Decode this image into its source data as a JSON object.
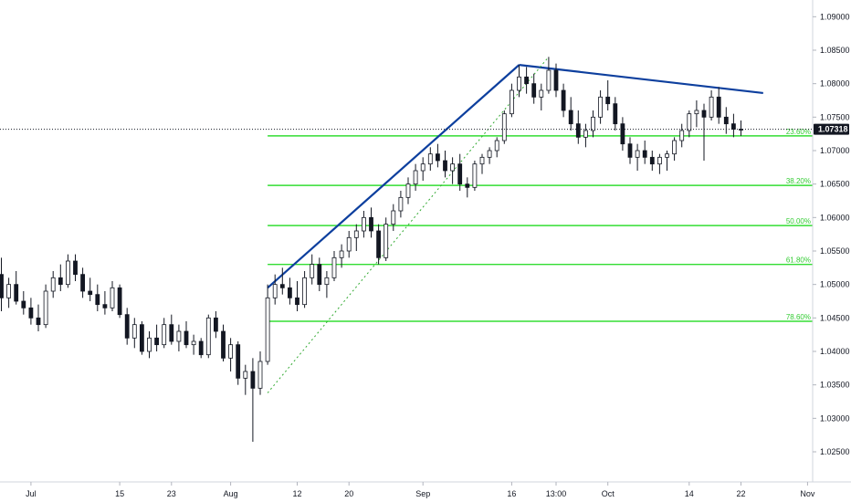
{
  "chart_data": {
    "type": "candlestick",
    "symbol_colors": {
      "candle": "#131722",
      "trendline": "#0d3f9e",
      "fib": "#33dd33",
      "fib_label": "#33cc33",
      "price_line": "#131722",
      "price_tag_bg": "#131722"
    },
    "y_axis": {
      "range": [
        1.0205,
        1.0925
      ],
      "ticks": [
        "1.09000",
        "1.08500",
        "1.08000",
        "1.07500",
        "1.07000",
        "1.06500",
        "1.06000",
        "1.05500",
        "1.05000",
        "1.04500",
        "1.04000",
        "1.03500",
        "1.03000",
        "1.02500"
      ],
      "tick_values": [
        1.09,
        1.085,
        1.08,
        1.075,
        1.07,
        1.065,
        1.06,
        1.055,
        1.05,
        1.045,
        1.04,
        1.035,
        1.03,
        1.025
      ]
    },
    "x_axis": {
      "ticks": [
        "Jul",
        "15",
        "23",
        "Aug",
        "12",
        "20",
        "Sep",
        "16",
        "13:00",
        "Oct",
        "14",
        "22",
        "Nov"
      ],
      "tick_index": [
        4,
        16,
        23,
        31,
        40,
        47,
        57,
        69,
        75,
        82,
        93,
        100,
        109
      ]
    },
    "bar_count": 112,
    "current_price": "1.07318",
    "current_price_value": 1.07318,
    "fib_levels": [
      {
        "label": "23.60%",
        "price": 1.0722,
        "start_index": 36
      },
      {
        "label": "38.20%",
        "price": 1.0648,
        "start_index": 36
      },
      {
        "label": "50.00%",
        "price": 1.0588,
        "start_index": 36
      },
      {
        "label": "61.80%",
        "price": 1.053,
        "start_index": 36
      },
      {
        "label": "78.60%",
        "price": 1.0445,
        "start_index": 36
      }
    ],
    "trendlines": [
      {
        "from": [
          36,
          1.0495
        ],
        "to": [
          70,
          1.0828
        ],
        "style": "solid"
      },
      {
        "from": [
          70,
          1.0828
        ],
        "to": [
          103,
          1.0786
        ],
        "style": "solid"
      },
      {
        "from": [
          36,
          1.0338
        ],
        "to": [
          74,
          1.084
        ],
        "style": "dotted"
      }
    ],
    "ohlc": [
      [
        1.0515,
        1.054,
        1.046,
        1.048
      ],
      [
        1.048,
        1.051,
        1.0465,
        1.05
      ],
      [
        1.05,
        1.052,
        1.047,
        1.0475
      ],
      [
        1.0475,
        1.049,
        1.0455,
        1.0465
      ],
      [
        1.0465,
        1.048,
        1.044,
        1.045
      ],
      [
        1.045,
        1.047,
        1.043,
        1.044
      ],
      [
        1.044,
        1.05,
        1.0435,
        1.049
      ],
      [
        1.049,
        1.052,
        1.048,
        1.051
      ],
      [
        1.051,
        1.053,
        1.049,
        1.05
      ],
      [
        1.05,
        1.0545,
        1.0495,
        1.0535
      ],
      [
        1.0535,
        1.0545,
        1.0505,
        1.0515
      ],
      [
        1.0515,
        1.0525,
        1.048,
        1.049
      ],
      [
        1.049,
        1.051,
        1.0475,
        1.0485
      ],
      [
        1.0485,
        1.05,
        1.046,
        1.047
      ],
      [
        1.047,
        1.049,
        1.0455,
        1.0465
      ],
      [
        1.0465,
        1.0505,
        1.046,
        1.0495
      ],
      [
        1.0495,
        1.05,
        1.045,
        1.0455
      ],
      [
        1.0455,
        1.0465,
        1.041,
        1.042
      ],
      [
        1.042,
        1.045,
        1.0405,
        1.044
      ],
      [
        1.044,
        1.0445,
        1.0395,
        1.04
      ],
      [
        1.04,
        1.043,
        1.039,
        1.042
      ],
      [
        1.042,
        1.044,
        1.04,
        1.041
      ],
      [
        1.041,
        1.045,
        1.0405,
        1.044
      ],
      [
        1.044,
        1.0455,
        1.041,
        1.0415
      ],
      [
        1.0415,
        1.044,
        1.04,
        1.043
      ],
      [
        1.043,
        1.0445,
        1.0405,
        1.041
      ],
      [
        1.041,
        1.0425,
        1.0395,
        1.0415
      ],
      [
        1.0415,
        1.042,
        1.039,
        1.0395
      ],
      [
        1.0395,
        1.0455,
        1.039,
        1.045
      ],
      [
        1.045,
        1.046,
        1.042,
        1.043
      ],
      [
        1.043,
        1.044,
        1.0385,
        1.039
      ],
      [
        1.039,
        1.042,
        1.037,
        1.041
      ],
      [
        1.041,
        1.0415,
        1.035,
        1.036
      ],
      [
        1.036,
        1.038,
        1.0335,
        1.037
      ],
      [
        1.037,
        1.039,
        1.0265,
        1.0345
      ],
      [
        1.0345,
        1.04,
        1.0335,
        1.0385
      ],
      [
        1.0385,
        1.05,
        1.038,
        1.048
      ],
      [
        1.048,
        1.0515,
        1.047,
        1.05
      ],
      [
        1.05,
        1.0525,
        1.0485,
        1.0495
      ],
      [
        1.0495,
        1.051,
        1.047,
        1.048
      ],
      [
        1.048,
        1.0505,
        1.046,
        1.047
      ],
      [
        1.047,
        1.052,
        1.0465,
        1.051
      ],
      [
        1.051,
        1.0545,
        1.05,
        1.053
      ],
      [
        1.053,
        1.054,
        1.049,
        1.05
      ],
      [
        1.05,
        1.052,
        1.048,
        1.051
      ],
      [
        1.051,
        1.055,
        1.0505,
        1.054
      ],
      [
        1.054,
        1.056,
        1.0525,
        1.055
      ],
      [
        1.055,
        1.058,
        1.054,
        1.057
      ],
      [
        1.057,
        1.059,
        1.055,
        1.058
      ],
      [
        1.058,
        1.061,
        1.057,
        1.06
      ],
      [
        1.06,
        1.0615,
        1.057,
        1.058
      ],
      [
        1.058,
        1.059,
        1.053,
        1.054
      ],
      [
        1.054,
        1.06,
        1.0535,
        1.059
      ],
      [
        1.059,
        1.062,
        1.058,
        1.061
      ],
      [
        1.061,
        1.064,
        1.06,
        1.063
      ],
      [
        1.063,
        1.066,
        1.062,
        1.065
      ],
      [
        1.065,
        1.068,
        1.064,
        1.067
      ],
      [
        1.067,
        1.069,
        1.0655,
        1.068
      ],
      [
        1.068,
        1.0705,
        1.067,
        1.0695
      ],
      [
        1.0695,
        1.071,
        1.0675,
        1.0685
      ],
      [
        1.0685,
        1.07,
        1.066,
        1.067
      ],
      [
        1.067,
        1.069,
        1.065,
        1.068
      ],
      [
        1.068,
        1.0695,
        1.064,
        1.065
      ],
      [
        1.065,
        1.066,
        1.063,
        1.0645
      ],
      [
        1.0645,
        1.0685,
        1.064,
        1.068
      ],
      [
        1.068,
        1.0695,
        1.0665,
        1.069
      ],
      [
        1.069,
        1.0705,
        1.068,
        1.07
      ],
      [
        1.07,
        1.072,
        1.069,
        1.0715
      ],
      [
        1.0715,
        1.076,
        1.071,
        1.0755
      ],
      [
        1.0755,
        1.08,
        1.075,
        1.079
      ],
      [
        1.079,
        1.0828,
        1.078,
        1.081
      ],
      [
        1.081,
        1.0825,
        1.0785,
        1.08
      ],
      [
        1.08,
        1.0815,
        1.077,
        1.078
      ],
      [
        1.078,
        1.08,
        1.076,
        1.079
      ],
      [
        1.079,
        1.084,
        1.0785,
        1.082
      ],
      [
        1.082,
        1.083,
        1.078,
        1.079
      ],
      [
        1.079,
        1.08,
        1.075,
        1.076
      ],
      [
        1.076,
        1.078,
        1.073,
        1.074
      ],
      [
        1.074,
        1.076,
        1.071,
        1.072
      ],
      [
        1.072,
        1.074,
        1.0705,
        1.073
      ],
      [
        1.073,
        1.076,
        1.072,
        1.075
      ],
      [
        1.075,
        1.079,
        1.074,
        1.078
      ],
      [
        1.078,
        1.0805,
        1.076,
        1.077
      ],
      [
        1.077,
        1.078,
        1.073,
        1.074
      ],
      [
        1.074,
        1.075,
        1.07,
        1.071
      ],
      [
        1.071,
        1.072,
        1.068,
        1.069
      ],
      [
        1.069,
        1.071,
        1.067,
        1.07
      ],
      [
        1.07,
        1.0715,
        1.068,
        1.069
      ],
      [
        1.069,
        1.07,
        1.067,
        1.068
      ],
      [
        1.068,
        1.0695,
        1.0665,
        1.069
      ],
      [
        1.069,
        1.07,
        1.067,
        1.0695
      ],
      [
        1.0695,
        1.072,
        1.0685,
        1.0715
      ],
      [
        1.0715,
        1.074,
        1.0705,
        1.073
      ],
      [
        1.073,
        1.076,
        1.072,
        1.0755
      ],
      [
        1.0755,
        1.0775,
        1.0735,
        1.076
      ],
      [
        1.076,
        1.077,
        1.0685,
        1.075
      ],
      [
        1.075,
        1.079,
        1.0745,
        1.078
      ],
      [
        1.078,
        1.0795,
        1.074,
        1.075
      ],
      [
        1.075,
        1.0765,
        1.0725,
        1.074
      ],
      [
        1.074,
        1.0755,
        1.072,
        1.0732
      ],
      [
        1.0732,
        1.0745,
        1.0722,
        1.0731
      ],
      [
        1.0731,
        1.074,
        1.0725,
        1.0732
      ],
      [
        1.0732,
        1.0738,
        1.0728,
        1.0731
      ],
      [
        1.0731,
        1.0736,
        1.0728,
        1.0732
      ],
      [
        1.0732,
        1.0734,
        1.0729,
        1.0731
      ],
      [
        1.0731,
        1.0733,
        1.0729,
        1.0732
      ],
      [
        1.0732,
        1.0733,
        1.073,
        1.0731
      ],
      [
        1.0731,
        1.0733,
        1.073,
        1.0732
      ],
      [
        1.0732,
        1.0733,
        1.073,
        1.0731
      ],
      [
        1.0731,
        1.0733,
        1.073,
        1.0732
      ],
      [
        1.0732,
        1.0733,
        1.073,
        1.0731
      ],
      [
        1.0731,
        1.0733,
        1.073,
        1.0732
      ]
    ],
    "visible_bar_count": 101
  }
}
